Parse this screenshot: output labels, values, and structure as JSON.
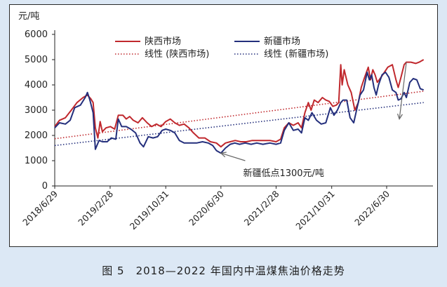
{
  "chart_data": {
    "type": "line",
    "y_unit": "元/吨",
    "ylim": [
      0,
      6000
    ],
    "yticks": [
      0,
      1000,
      2000,
      3000,
      4000,
      5000,
      6000
    ],
    "xlim": [
      "2018-06-29",
      "2023-01-20"
    ],
    "xtick_labels": [
      "2018/6/29",
      "2019/2/28",
      "2019/10/31",
      "2020/6/30",
      "2021/2/28",
      "2021/10/31",
      "2022/6/30"
    ],
    "xtick_dates": [
      "2018-06-29",
      "2019-02-28",
      "2019-10-31",
      "2020-06-30",
      "2021-02-28",
      "2021-10-31",
      "2022-06-30"
    ],
    "grid": false,
    "legend": "top",
    "series": [
      {
        "name": "陕西市场",
        "color": "#c0282d",
        "style": "solid",
        "points": [
          [
            "2018-06-29",
            2350
          ],
          [
            "2018-07-20",
            2600
          ],
          [
            "2018-08-15",
            2700
          ],
          [
            "2018-09-10",
            3000
          ],
          [
            "2018-10-05",
            3300
          ],
          [
            "2018-11-01",
            3500
          ],
          [
            "2018-11-20",
            3600
          ],
          [
            "2018-12-05",
            3450
          ],
          [
            "2018-12-15",
            3300
          ],
          [
            "2018-12-25",
            2300
          ],
          [
            "2019-01-05",
            1900
          ],
          [
            "2019-01-15",
            2550
          ],
          [
            "2019-01-25",
            2150
          ],
          [
            "2019-02-10",
            2300
          ],
          [
            "2019-03-01",
            2350
          ],
          [
            "2019-03-20",
            2250
          ],
          [
            "2019-04-05",
            2800
          ],
          [
            "2019-04-25",
            2800
          ],
          [
            "2019-05-10",
            2650
          ],
          [
            "2019-05-25",
            2750
          ],
          [
            "2019-06-10",
            2600
          ],
          [
            "2019-07-01",
            2500
          ],
          [
            "2019-07-20",
            2700
          ],
          [
            "2019-08-10",
            2500
          ],
          [
            "2019-08-30",
            2350
          ],
          [
            "2019-09-20",
            2450
          ],
          [
            "2019-10-10",
            2350
          ],
          [
            "2019-10-31",
            2550
          ],
          [
            "2019-11-20",
            2650
          ],
          [
            "2019-12-10",
            2500
          ],
          [
            "2019-12-30",
            2400
          ],
          [
            "2020-01-20",
            2450
          ],
          [
            "2020-02-10",
            2300
          ],
          [
            "2020-03-01",
            2100
          ],
          [
            "2020-03-25",
            1900
          ],
          [
            "2020-04-20",
            1900
          ],
          [
            "2020-05-15",
            1750
          ],
          [
            "2020-06-10",
            1700
          ],
          [
            "2020-06-30",
            1550
          ],
          [
            "2020-07-20",
            1700
          ],
          [
            "2020-08-10",
            1750
          ],
          [
            "2020-09-01",
            1800
          ],
          [
            "2020-09-25",
            1750
          ],
          [
            "2020-10-20",
            1750
          ],
          [
            "2020-11-15",
            1800
          ],
          [
            "2020-12-10",
            1800
          ],
          [
            "2021-01-05",
            1800
          ],
          [
            "2021-02-01",
            1800
          ],
          [
            "2021-02-28",
            1750
          ],
          [
            "2021-03-20",
            1850
          ],
          [
            "2021-04-05",
            2300
          ],
          [
            "2021-04-25",
            2500
          ],
          [
            "2021-05-15",
            2400
          ],
          [
            "2021-06-05",
            2500
          ],
          [
            "2021-06-20",
            2300
          ],
          [
            "2021-07-05",
            2900
          ],
          [
            "2021-07-20",
            3300
          ],
          [
            "2021-08-01",
            3000
          ],
          [
            "2021-08-15",
            3400
          ],
          [
            "2021-09-01",
            3300
          ],
          [
            "2021-09-20",
            3500
          ],
          [
            "2021-10-05",
            3400
          ],
          [
            "2021-10-20",
            3350
          ],
          [
            "2021-11-05",
            3150
          ],
          [
            "2021-11-20",
            3200
          ],
          [
            "2021-12-01",
            3300
          ],
          [
            "2021-12-10",
            4800
          ],
          [
            "2021-12-16",
            4000
          ],
          [
            "2021-12-25",
            4600
          ],
          [
            "2022-01-10",
            4000
          ],
          [
            "2022-01-25",
            3700
          ],
          [
            "2022-02-10",
            3000
          ],
          [
            "2022-02-25",
            3300
          ],
          [
            "2022-03-10",
            3900
          ],
          [
            "2022-03-25",
            4300
          ],
          [
            "2022-04-10",
            4700
          ],
          [
            "2022-04-20",
            4200
          ],
          [
            "2022-04-30",
            4600
          ],
          [
            "2022-05-10",
            4400
          ],
          [
            "2022-05-20",
            4100
          ],
          [
            "2022-06-05",
            4300
          ],
          [
            "2022-06-20",
            4500
          ],
          [
            "2022-07-05",
            4700
          ],
          [
            "2022-07-25",
            4800
          ],
          [
            "2022-08-10",
            4200
          ],
          [
            "2022-08-20",
            3900
          ],
          [
            "2022-09-01",
            4300
          ],
          [
            "2022-09-15",
            4800
          ],
          [
            "2022-09-25",
            4900
          ],
          [
            "2022-10-15",
            4900
          ],
          [
            "2022-11-05",
            4850
          ],
          [
            "2022-11-20",
            4900
          ],
          [
            "2022-12-10",
            5000
          ]
        ]
      },
      {
        "name": "新疆市场",
        "color": "#242f7c",
        "style": "solid",
        "points": [
          [
            "2018-06-29",
            2300
          ],
          [
            "2018-07-20",
            2500
          ],
          [
            "2018-08-15",
            2450
          ],
          [
            "2018-09-05",
            2600
          ],
          [
            "2018-09-25",
            3100
          ],
          [
            "2018-10-20",
            3200
          ],
          [
            "2018-11-10",
            3500
          ],
          [
            "2018-11-20",
            3700
          ],
          [
            "2018-12-01",
            3400
          ],
          [
            "2018-12-15",
            2900
          ],
          [
            "2018-12-25",
            1450
          ],
          [
            "2019-01-10",
            1800
          ],
          [
            "2019-01-25",
            1750
          ],
          [
            "2019-02-15",
            1750
          ],
          [
            "2019-03-05",
            1900
          ],
          [
            "2019-03-25",
            1850
          ],
          [
            "2019-04-05",
            2650
          ],
          [
            "2019-04-20",
            2350
          ],
          [
            "2019-05-10",
            2350
          ],
          [
            "2019-05-30",
            2250
          ],
          [
            "2019-06-20",
            2100
          ],
          [
            "2019-07-10",
            1700
          ],
          [
            "2019-07-25",
            1550
          ],
          [
            "2019-08-15",
            1950
          ],
          [
            "2019-09-05",
            1900
          ],
          [
            "2019-09-25",
            1950
          ],
          [
            "2019-10-15",
            2200
          ],
          [
            "2019-10-31",
            2250
          ],
          [
            "2019-11-20",
            2200
          ],
          [
            "2019-12-10",
            2100
          ],
          [
            "2019-12-30",
            1800
          ],
          [
            "2020-01-20",
            1700
          ],
          [
            "2020-02-20",
            1700
          ],
          [
            "2020-03-15",
            1700
          ],
          [
            "2020-04-10",
            1750
          ],
          [
            "2020-05-05",
            1700
          ],
          [
            "2020-05-25",
            1600
          ],
          [
            "2020-06-10",
            1400
          ],
          [
            "2020-06-30",
            1300
          ],
          [
            "2020-07-20",
            1500
          ],
          [
            "2020-08-10",
            1650
          ],
          [
            "2020-08-30",
            1700
          ],
          [
            "2020-09-20",
            1650
          ],
          [
            "2020-10-15",
            1700
          ],
          [
            "2020-11-10",
            1650
          ],
          [
            "2020-12-05",
            1700
          ],
          [
            "2021-01-01",
            1650
          ],
          [
            "2021-02-01",
            1700
          ],
          [
            "2021-02-28",
            1650
          ],
          [
            "2021-03-20",
            1700
          ],
          [
            "2021-04-05",
            2200
          ],
          [
            "2021-04-25",
            2500
          ],
          [
            "2021-05-15",
            2200
          ],
          [
            "2021-06-05",
            2250
          ],
          [
            "2021-06-20",
            2100
          ],
          [
            "2021-07-05",
            2700
          ],
          [
            "2021-07-20",
            2600
          ],
          [
            "2021-08-05",
            2900
          ],
          [
            "2021-08-25",
            2600
          ],
          [
            "2021-09-15",
            2450
          ],
          [
            "2021-10-05",
            2500
          ],
          [
            "2021-10-25",
            3100
          ],
          [
            "2021-11-10",
            2800
          ],
          [
            "2021-11-25",
            3000
          ],
          [
            "2021-12-10",
            3300
          ],
          [
            "2021-12-20",
            3400
          ],
          [
            "2022-01-05",
            3400
          ],
          [
            "2022-01-20",
            2700
          ],
          [
            "2022-02-05",
            2500
          ],
          [
            "2022-02-20",
            3100
          ],
          [
            "2022-03-05",
            3600
          ],
          [
            "2022-03-20",
            3800
          ],
          [
            "2022-04-05",
            4500
          ],
          [
            "2022-04-15",
            4200
          ],
          [
            "2022-04-25",
            4400
          ],
          [
            "2022-05-05",
            3900
          ],
          [
            "2022-05-15",
            3600
          ],
          [
            "2022-05-25",
            4000
          ],
          [
            "2022-06-10",
            4400
          ],
          [
            "2022-06-25",
            4500
          ],
          [
            "2022-07-10",
            4300
          ],
          [
            "2022-07-25",
            3800
          ],
          [
            "2022-08-10",
            3700
          ],
          [
            "2022-08-20",
            3400
          ],
          [
            "2022-09-01",
            3450
          ],
          [
            "2022-09-15",
            3700
          ],
          [
            "2022-09-25",
            3500
          ],
          [
            "2022-10-10",
            4100
          ],
          [
            "2022-10-25",
            4250
          ],
          [
            "2022-11-10",
            4200
          ],
          [
            "2022-11-25",
            3850
          ],
          [
            "2022-12-10",
            3800
          ]
        ]
      },
      {
        "name": "线性 (陕西市场)",
        "color": "#c0282d",
        "style": "dotted",
        "points": [
          [
            "2018-06-29",
            1870
          ],
          [
            "2022-12-10",
            3750
          ]
        ]
      },
      {
        "name": "线性 (新疆市场)",
        "color": "#242f7c",
        "style": "dotted",
        "points": [
          [
            "2018-06-29",
            1600
          ],
          [
            "2022-12-10",
            3300
          ]
        ]
      }
    ],
    "annotations": [
      {
        "text": "新疆低点1300元/吨",
        "arrow_from": [
          "2020-10-15",
          1000
        ],
        "arrow_to": [
          "2020-06-30",
          1300
        ]
      },
      {
        "text": "",
        "arrow_from": [
          "2022-09-25",
          4900
        ],
        "arrow_to": [
          "2022-08-25",
          2650
        ]
      }
    ]
  },
  "caption": "图 5　2018—2022 年国内中温煤焦油价格走势"
}
